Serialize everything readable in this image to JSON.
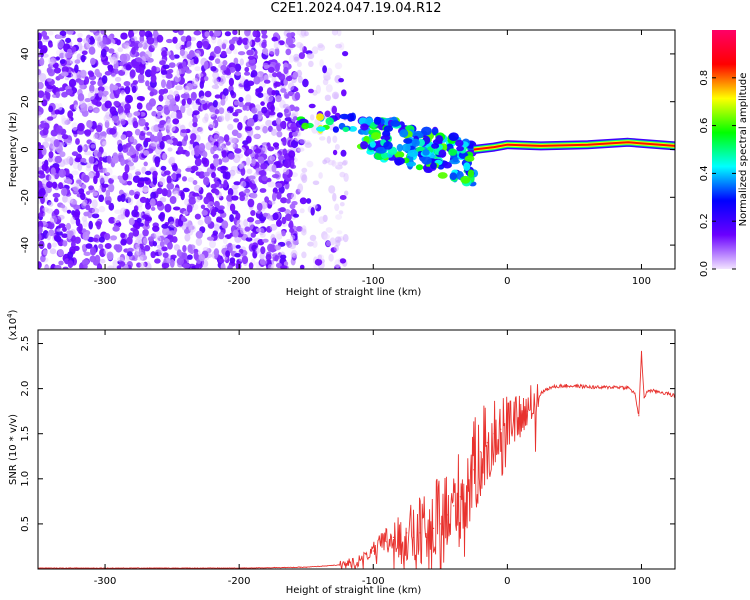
{
  "title": "C2E1.2024.047.19.04.R12",
  "chart_data": [
    {
      "type": "heatmap",
      "xlabel": "Height of straight line (km)",
      "ylabel": "Frequency (Hz)",
      "xlim": [
        -350,
        125
      ],
      "ylim": [
        -50,
        50
      ],
      "xticks": [
        -300,
        -200,
        -100,
        0,
        100
      ],
      "yticks": [
        -40,
        -20,
        0,
        20,
        40
      ],
      "colorbar": {
        "label": "Normalized spectral amplitude",
        "range": [
          0,
          1
        ],
        "ticks": [
          "0.0",
          "0.2",
          "0.4",
          "0.6",
          "0.8"
        ],
        "colors": [
          "#f2e4ff",
          "#6a00ff",
          "#0000ff",
          "#00ffff",
          "#00ff00",
          "#ffff00",
          "#ff0000",
          "#ff0066"
        ]
      },
      "features": [
        {
          "description": "broadband noise",
          "x_range": [
            -350,
            -155
          ],
          "y_range": [
            -50,
            50
          ],
          "amplitude": 0.15
        },
        {
          "description": "sparse noise edge",
          "x_range": [
            -155,
            -120
          ],
          "y_range": [
            -50,
            50
          ],
          "amplitude": 0.05
        },
        {
          "description": "coherent signal onset",
          "x_range": [
            -155,
            -115
          ],
          "y_range": [
            8,
            14
          ],
          "amplitude": 0.6
        },
        {
          "description": "disturbed region",
          "x_range": [
            -110,
            -25
          ],
          "y_range": [
            -18,
            12
          ],
          "amplitude": 0.5
        },
        {
          "description": "stable tone",
          "x": [
            -25,
            -10,
            0,
            25,
            60,
            90,
            125
          ],
          "y": [
            0,
            1,
            2,
            1.5,
            2,
            3,
            1.5
          ],
          "amplitude": 0.85
        }
      ]
    },
    {
      "type": "line",
      "xlabel": "Height of straight line (km)",
      "ylabel": "SNR (10 * v/v)",
      "y_multiplier": "(x10^4)",
      "xlim": [
        -350,
        125
      ],
      "ylim": [
        0,
        2.65
      ],
      "xticks": [
        -300,
        -200,
        -100,
        0,
        100
      ],
      "yticks": [
        0.5,
        1.0,
        1.5,
        2.0,
        2.5
      ],
      "series": [
        {
          "color": "#e8322e",
          "x": [
            -350,
            -300,
            -250,
            -200,
            -150,
            -120,
            -110,
            -100,
            -90,
            -85,
            -80,
            -75,
            -70,
            -65,
            -60,
            -55,
            -50,
            -45,
            -40,
            -35,
            -30,
            -25,
            -20,
            -15,
            -10,
            -5,
            0,
            5,
            10,
            15,
            20,
            25,
            30,
            35,
            40,
            50,
            60,
            70,
            80,
            90,
            95,
            98,
            100,
            102,
            105,
            110,
            115,
            125
          ],
          "y": [
            0.01,
            0.01,
            0.01,
            0.01,
            0.02,
            0.05,
            0.1,
            0.2,
            0.3,
            0.35,
            0.3,
            0.4,
            0.35,
            0.4,
            0.35,
            0.45,
            0.5,
            0.6,
            0.7,
            0.8,
            0.9,
            1.1,
            1.3,
            1.4,
            1.5,
            1.55,
            1.6,
            1.65,
            1.7,
            1.75,
            1.85,
            1.95,
            2.0,
            2.02,
            2.03,
            2.03,
            2.02,
            2.01,
            2.02,
            2.01,
            1.95,
            1.7,
            2.4,
            1.9,
            1.98,
            1.97,
            1.96,
            1.92
          ]
        }
      ]
    }
  ]
}
